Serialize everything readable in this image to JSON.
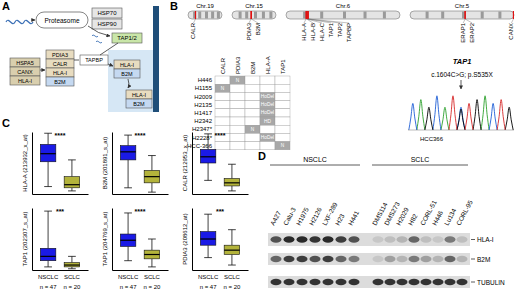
{
  "panel_labels": [
    "A",
    "B",
    "C",
    "D"
  ],
  "diagram": {
    "proteasome": "Proteasome",
    "chaperones": [
      "HSP70",
      "HSP90"
    ],
    "transporter": "TAP1/2",
    "chaperone_stack": [
      "HSPA5",
      "CANX",
      "HLA-I"
    ],
    "loading_stack": [
      "PDIA3",
      "CALR",
      "HLA-I",
      "B2M"
    ],
    "tapasin": "TAPBP",
    "mhc_complex": [
      "HLA-I",
      "B2M"
    ]
  },
  "genome": {
    "chromosomes": [
      {
        "label": "Chr.19",
        "length_mb": 59,
        "genes": [
          {
            "label": "CALR",
            "location_mb": 13
          }
        ]
      },
      {
        "label": "Chr.15",
        "length_mb": 102,
        "genes": [
          {
            "label": "PDIA3",
            "location_mb": 44
          },
          {
            "label": "B2M",
            "location_mb": 45
          }
        ]
      },
      {
        "label": "Chr.6",
        "length_mb": 171,
        "genes": [
          {
            "label": "HLA-A",
            "location_mb": 30
          },
          {
            "label": "HLA-B",
            "location_mb": 31
          },
          {
            "label": "HLA-C",
            "location_mb": 31
          },
          {
            "label": "TAP1",
            "location_mb": 33
          },
          {
            "label": "TAP2",
            "location_mb": 33
          },
          {
            "label": "TAPBP",
            "location_mb": 33
          }
        ]
      },
      {
        "label": "Chr.5",
        "length_mb": 181,
        "genes": [
          {
            "label": "ERAP1",
            "location_mb": 96
          },
          {
            "label": "ERAP2",
            "location_mb": 96
          },
          {
            "label": "CANX",
            "location_mb": 180
          }
        ]
      }
    ]
  },
  "table": {
    "columns": [
      "CALR",
      "PDIA3",
      "B2M",
      "HLA-A",
      "TAP1"
    ],
    "rows": [
      {
        "name": "H446",
        "alterations": {
          "PDIA3": "N"
        }
      },
      {
        "name": "H1155",
        "alterations": {
          "CALR": "N"
        }
      },
      {
        "name": "H2009",
        "alterations": {
          "HLA-A": "HoDel"
        }
      },
      {
        "name": "H2135",
        "alterations": {
          "HLA-A": "HoDel"
        }
      },
      {
        "name": "H1417",
        "alterations": {
          "HLA-A": "HoDel"
        }
      },
      {
        "name": "H2342",
        "alterations": {
          "HLA-A": "HD"
        }
      },
      {
        "name": "H2347*",
        "alterations": {
          "B2M": "N"
        }
      },
      {
        "name": "H2228*",
        "alterations": {
          "HLA-A": "HoDel"
        }
      },
      {
        "name": "HCC-366",
        "alterations": {
          "TAP1": "N"
        }
      }
    ]
  },
  "chromatogram": {
    "gene": "TAP1",
    "mutation": "c.1604C>G; p.S535X",
    "sample": "HCC366",
    "mutation_position": 6,
    "xlim": [
      -0.6,
      12.6
    ],
    "ylim": [
      0,
      1
    ],
    "traces": [
      {
        "color": "#2ca02c",
        "peaks": [
          [
            1,
            0.8
          ],
          [
            4,
            0.6
          ],
          [
            9,
            0.9
          ]
        ]
      },
      {
        "color": "#1f5fd6",
        "peaks": [
          [
            0,
            0.7
          ],
          [
            3,
            0.9
          ],
          [
            6,
            0.6
          ],
          [
            10,
            0.7
          ]
        ]
      },
      {
        "color": "#000000",
        "peaks": [
          [
            2,
            0.6
          ],
          [
            6,
            0.55
          ],
          [
            8,
            0.8
          ],
          [
            12,
            0.6
          ]
        ]
      },
      {
        "color": "#d62728",
        "peaks": [
          [
            5,
            0.9
          ],
          [
            7,
            0.7
          ],
          [
            11,
            0.8
          ]
        ]
      }
    ]
  },
  "box_groups": {
    "categories": [
      "NSCLC",
      "SCLC"
    ],
    "n_labels": [
      "n = 47",
      "n = 20"
    ],
    "colors": [
      "#1a1ae6",
      "#b3b33b"
    ]
  },
  "chart_data": [
    {
      "type": "box",
      "ylabel": "HLA-A (213932_x_at)",
      "ylim": [
        0,
        100
      ],
      "yticks": [],
      "tick_labels": false,
      "significance": "****",
      "boxes": [
        {
          "whislo": 12,
          "q1": 52,
          "med": 65,
          "q3": 80,
          "whishi": 98
        },
        {
          "whislo": 5,
          "q1": 10,
          "med": 15,
          "q3": 28,
          "whishi": 55
        }
      ]
    },
    {
      "type": "box",
      "ylabel": "B2M (201891_s_at)",
      "ylim": [
        0,
        100
      ],
      "yticks": [],
      "tick_labels": false,
      "significance": "****",
      "boxes": [
        {
          "whislo": 10,
          "q1": 55,
          "med": 68,
          "q3": 78,
          "whishi": 95
        },
        {
          "whislo": 3,
          "q1": 18,
          "med": 28,
          "q3": 38,
          "whishi": 62
        }
      ]
    },
    {
      "type": "box",
      "ylabel": "CALR (212953_x_at)",
      "ylim": [
        0,
        100
      ],
      "yticks": [],
      "tick_labels": false,
      "significance": "****",
      "boxes": [
        {
          "whislo": 22,
          "q1": 50,
          "med": 60,
          "q3": 72,
          "whishi": 97
        },
        {
          "whislo": 5,
          "q1": 13,
          "med": 18,
          "q3": 25,
          "whishi": 48
        }
      ]
    },
    {
      "type": "box",
      "ylabel": "TAP1 (202307_s_at)",
      "ylim": [
        0,
        100
      ],
      "yticks": [],
      "tick_labels": false,
      "significance": "***",
      "boxes": [
        {
          "whislo": 5,
          "q1": 15,
          "med": 22,
          "q3": 35,
          "whishi": 95
        },
        {
          "whislo": 2,
          "q1": 5,
          "med": 8,
          "q3": 12,
          "whishi": 22
        }
      ]
    },
    {
      "type": "box",
      "ylabel": "TAP1 (204769_s_at)",
      "ylim": [
        0,
        100
      ],
      "yticks": [],
      "tick_labels": false,
      "significance": "****",
      "boxes": [
        {
          "whislo": 15,
          "q1": 38,
          "med": 48,
          "q3": 58,
          "whishi": 92
        },
        {
          "whislo": 5,
          "q1": 18,
          "med": 25,
          "q3": 32,
          "whishi": 50
        }
      ]
    },
    {
      "type": "box",
      "ylabel": "PDIA3 (208612_at)",
      "ylim": [
        0,
        100
      ],
      "yticks": [],
      "tick_labels": false,
      "significance": "***",
      "boxes": [
        {
          "whislo": 20,
          "q1": 40,
          "med": 50,
          "q3": 62,
          "whishi": 90
        },
        {
          "whislo": 8,
          "q1": 25,
          "med": 32,
          "q3": 40,
          "whishi": 65
        }
      ]
    }
  ],
  "blot": {
    "groups": [
      {
        "label": "NSCLC",
        "lanes": [
          "A427",
          "Calu-3",
          "H1975",
          "H2126",
          "LXF-289",
          "H23",
          "H441"
        ]
      },
      {
        "label": "SCLC",
        "lanes": [
          "DMS114",
          "DMS273",
          "H2029",
          "H82",
          "CORL-51",
          "H446",
          "Lu134",
          "CORL-95"
        ]
      }
    ],
    "bands": [
      {
        "label": "HLA-I",
        "intensity": [
          0.7,
          0.9,
          0.9,
          0.85,
          0.9,
          0.8,
          0.7,
          0.1,
          0.15,
          0.2,
          0.6,
          0.15,
          0.1,
          0.5,
          0.15
        ]
      },
      {
        "label": "B2M",
        "intensity": [
          0.6,
          0.8,
          0.8,
          0.7,
          0.8,
          0.6,
          0.5,
          0.1,
          0.3,
          0.2,
          0.5,
          0.3,
          0.2,
          0.6,
          0.2
        ]
      },
      {
        "label": "TUBULIN",
        "intensity": [
          0.85,
          0.85,
          0.85,
          0.85,
          0.85,
          0.85,
          0.85,
          0.85,
          0.85,
          0.85,
          0.85,
          0.85,
          0.85,
          0.85,
          0.85
        ]
      }
    ]
  }
}
